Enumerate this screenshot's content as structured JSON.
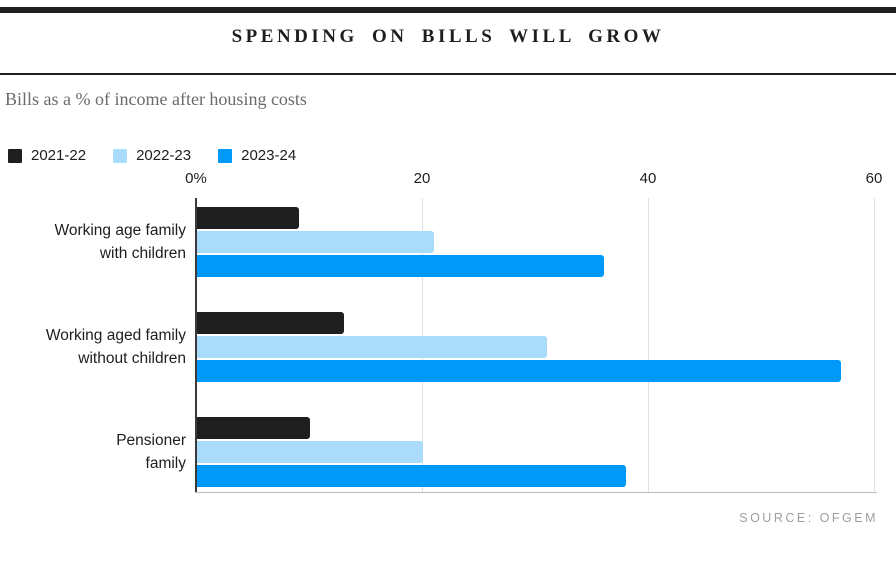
{
  "header": {
    "title": "SPENDING ON BILLS WILL GROW",
    "subtitle": "Bills as a % of income after housing costs"
  },
  "footer": {
    "source": "SOURCE: OFGEM"
  },
  "colors": {
    "accent_dark": "#1f1f1f",
    "accent_light_blue": "#a9dcfb",
    "accent_blue": "#0099fa",
    "gridline": "#e0e0e0",
    "axis": "#3a3a3a",
    "subtitle_text": "#6b6b6b",
    "source_text": "#9e9e9e"
  },
  "chart_data": {
    "type": "bar",
    "orientation": "horizontal",
    "title": "SPENDING ON BILLS WILL GROW",
    "subtitle": "Bills as a % of income after housing costs",
    "categories": [
      "Working age family\nwith children",
      "Working aged family\nwithout children",
      "Pensioner\nfamily"
    ],
    "series": [
      {
        "name": "2021-22",
        "color": "#1f1f1f",
        "values": [
          9,
          13,
          10
        ]
      },
      {
        "name": "2022-23",
        "color": "#a9dcfb",
        "values": [
          21,
          31,
          20
        ]
      },
      {
        "name": "2023-24",
        "color": "#0099fa",
        "values": [
          36,
          57,
          38
        ]
      }
    ],
    "xlabel": "",
    "ylabel": "",
    "xlim": [
      0,
      60
    ],
    "xticks": [
      {
        "value": 0,
        "label": "0%"
      },
      {
        "value": 20,
        "label": "20"
      },
      {
        "value": 40,
        "label": "40"
      },
      {
        "value": 60,
        "label": "60"
      }
    ],
    "grid": true,
    "legend_position": "top-left",
    "source": "SOURCE: OFGEM"
  }
}
